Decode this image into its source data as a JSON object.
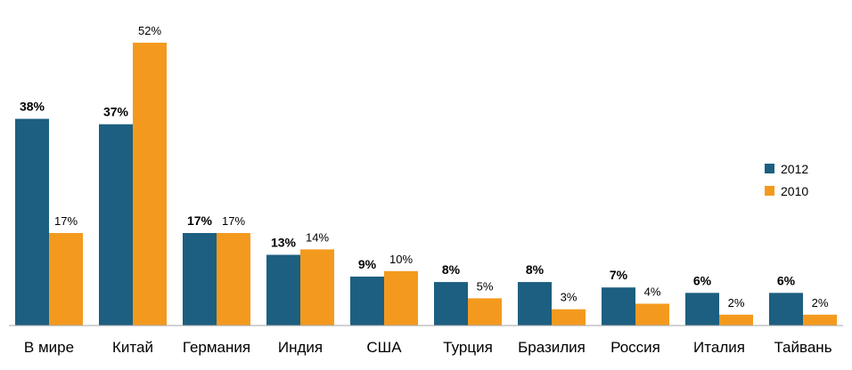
{
  "chart_data": {
    "type": "bar",
    "title": "",
    "xlabel": "",
    "ylabel": "",
    "ylim": [
      0,
      52
    ],
    "grid": false,
    "legend_position": "right",
    "categories": [
      "В мире",
      "Китай",
      "Германия",
      "Индия",
      "США",
      "Турция",
      "Бразилия",
      "Россия",
      "Италия",
      "Тайвань"
    ],
    "series": [
      {
        "name": "2012",
        "color": "#1c5f80",
        "values": [
          38,
          37,
          17,
          13,
          9,
          8,
          8,
          7,
          6,
          6
        ],
        "labels": [
          "38%",
          "37%",
          "17%",
          "13%",
          "9%",
          "8%",
          "8%",
          "7%",
          "6%",
          "6%"
        ]
      },
      {
        "name": "2010",
        "color": "#f39a1e",
        "values": [
          17,
          52,
          17,
          14,
          10,
          5,
          3,
          4,
          2,
          2
        ],
        "labels": [
          "17%",
          "52%",
          "17%",
          "14%",
          "10%",
          "5%",
          "3%",
          "4%",
          "2%",
          "2%"
        ]
      }
    ]
  }
}
